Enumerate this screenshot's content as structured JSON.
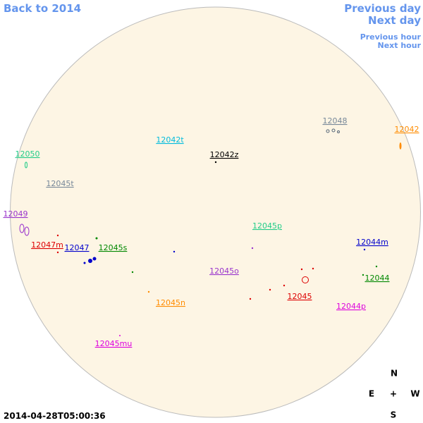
{
  "navigation": {
    "back_year": "Back to 2014",
    "previous_day": "Previous day",
    "next_day": "Next day",
    "previous_hour": "Previous hour",
    "next_hour": "Next hour"
  },
  "timestamp": "2014-04-28T05:00:36",
  "regions": [
    "12050",
    "12042t",
    "12042z",
    "12048",
    "12042",
    "12045t",
    "12049",
    "12045p",
    "12047m",
    "12047",
    "12045s",
    "12044m",
    "12045o",
    "12044",
    "12045",
    "12045n",
    "12044p",
    "12045mu"
  ],
  "compass": {
    "north": "N",
    "east": "E",
    "center": "+",
    "west": "W",
    "south": "S"
  }
}
